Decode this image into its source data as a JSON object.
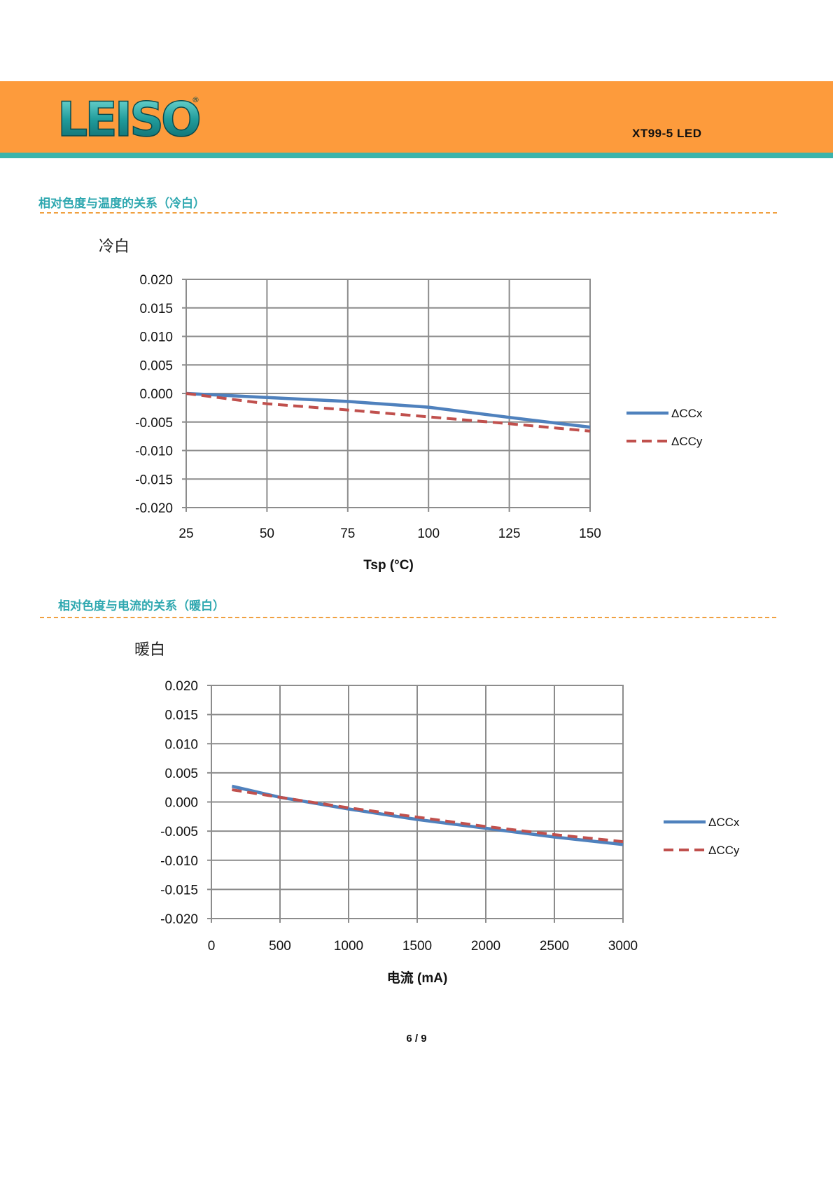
{
  "header": {
    "logo_text": "LEISO",
    "logo_mark": "®",
    "doc_code": "XT99-5 LED"
  },
  "colors": {
    "header_band": "#fd9b3c",
    "header_teal": "#3bb4ab",
    "section_title": "#2fa8b0",
    "series_x": "#4f81bd",
    "series_y": "#c0504d"
  },
  "sections": [
    {
      "title": "相对色度与温度的关系（冷白）"
    },
    {
      "title": "相对色度与电流的关系（暖白）"
    }
  ],
  "chart_data": [
    {
      "type": "line",
      "title": "冷白",
      "xlabel": "Tsp (°C)",
      "ylabel": "",
      "xlim": [
        25,
        150
      ],
      "ylim": [
        -0.02,
        0.02
      ],
      "xticks": [
        25,
        50,
        75,
        100,
        125,
        150
      ],
      "yticks": [
        -0.02,
        -0.015,
        -0.01,
        -0.005,
        0.0,
        0.005,
        0.01,
        0.015,
        0.02
      ],
      "grid": true,
      "legend_position": "right",
      "series": [
        {
          "name": "ΔCCx",
          "style": "solid",
          "color": "#4f81bd",
          "x": [
            25,
            50,
            75,
            100,
            125,
            150
          ],
          "y": [
            0.0,
            -0.0007,
            -0.0014,
            -0.0024,
            -0.0042,
            -0.0059
          ]
        },
        {
          "name": "ΔCCy",
          "style": "dashed",
          "color": "#c0504d",
          "x": [
            25,
            50,
            75,
            100,
            125,
            150
          ],
          "y": [
            0.0,
            -0.0018,
            -0.0029,
            -0.0041,
            -0.0053,
            -0.0066
          ]
        }
      ]
    },
    {
      "type": "line",
      "title": "暖白",
      "xlabel": "电流 (mA)",
      "ylabel": "",
      "xlim": [
        0,
        3000
      ],
      "ylim": [
        -0.02,
        0.02
      ],
      "xticks": [
        0,
        500,
        1000,
        1500,
        2000,
        2500,
        3000
      ],
      "yticks": [
        -0.02,
        -0.015,
        -0.01,
        -0.005,
        0.0,
        0.005,
        0.01,
        0.015,
        0.02
      ],
      "grid": true,
      "legend_position": "right",
      "series": [
        {
          "name": "ΔCCx",
          "style": "solid",
          "color": "#4f81bd",
          "x": [
            150,
            500,
            1000,
            1500,
            2000,
            2500,
            3000
          ],
          "y": [
            0.0027,
            0.0008,
            -0.0012,
            -0.003,
            -0.0045,
            -0.006,
            -0.0073
          ]
        },
        {
          "name": "ΔCCy",
          "style": "dashed",
          "color": "#c0504d",
          "x": [
            150,
            500,
            1000,
            1500,
            2000,
            2500,
            3000
          ],
          "y": [
            0.0021,
            0.0008,
            -0.001,
            -0.0026,
            -0.0042,
            -0.0056,
            -0.0068
          ]
        }
      ]
    }
  ],
  "footer": {
    "page": "6 / 9"
  }
}
